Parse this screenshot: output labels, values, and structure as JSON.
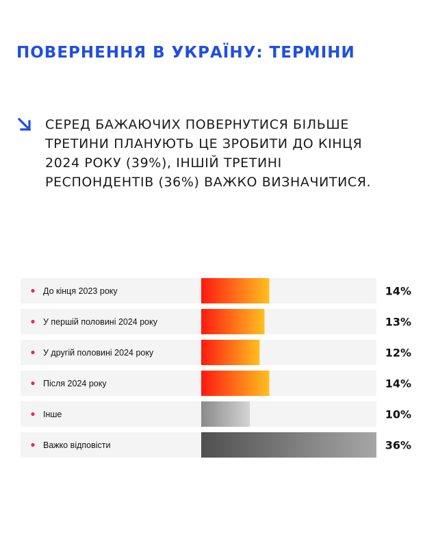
{
  "title": "ПОВЕРНЕННЯ В УКРАЇНУ: ТЕРМІНИ",
  "lead": {
    "lines": [
      "СЕРЕД БАЖАЮЧИХ ПОВЕРНУТИСЯ БІЛЬШЕ",
      "ТРЕТИНИ ПЛАНУЮТЬ ЦЕ ЗРОБИТИ ДО КІНЦЯ",
      "2024 РОКУ (39%), ІНШІЙ ТРЕТИНІ",
      "РЕСПОНДЕНТІВ (36%) ВАЖКО ВИЗНАЧИТИСЯ."
    ],
    "icon": "arrow-down-right-icon"
  },
  "colors": {
    "title": "#1f4fe0",
    "arrow": "#1f4fe0",
    "bullet": "#e8246a",
    "row_bg": "#f4f4f4",
    "gradient_warm": [
      "#ff1a10",
      "#ffc020"
    ],
    "gradient_gray_light": [
      "#8a8a8a",
      "#d4d4d4"
    ],
    "gradient_gray_dark": [
      "#505050",
      "#a6a6a6"
    ]
  },
  "chart_data": {
    "type": "bar",
    "orientation": "horizontal",
    "categories": [
      "До кінця 2023 року",
      "У першій половині 2024 року",
      "У другій половині 2024 року",
      "Після 2024 року",
      "Інше",
      "Важко відповісти"
    ],
    "values": [
      14,
      13,
      12,
      14,
      10,
      36
    ],
    "value_labels": [
      "14%",
      "13%",
      "12%",
      "14%",
      "10%",
      "36%"
    ],
    "bar_colors": [
      "warm",
      "warm",
      "warm",
      "warm",
      "gray_light",
      "gray_dark"
    ],
    "xlim": [
      0,
      36
    ],
    "unit": "%"
  }
}
